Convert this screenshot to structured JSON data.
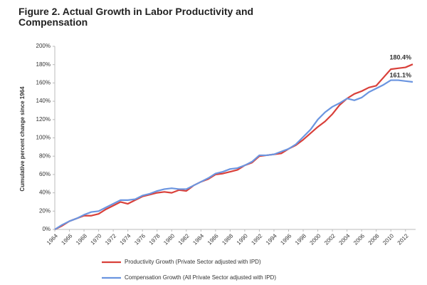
{
  "chart_data": {
    "type": "line",
    "title": "Figure 2. Actual Growth in Labor Productivity and Compensation",
    "y_label": "Cumulative percent change since 1964",
    "x": [
      1964,
      1965,
      1966,
      1967,
      1968,
      1969,
      1970,
      1971,
      1972,
      1973,
      1974,
      1975,
      1976,
      1977,
      1978,
      1979,
      1980,
      1981,
      1982,
      1983,
      1984,
      1985,
      1986,
      1987,
      1988,
      1989,
      1990,
      1991,
      1992,
      1993,
      1994,
      1995,
      1996,
      1997,
      1998,
      1999,
      2000,
      2001,
      2002,
      2003,
      2004,
      2005,
      2006,
      2007,
      2008,
      2009,
      2010,
      2011,
      2012,
      2013
    ],
    "series": [
      {
        "name": "Productivity Growth (Private Sector adjusted with IPD)",
        "color": "#d9403a",
        "values": [
          0,
          4,
          9,
          12,
          15,
          15,
          17,
          22,
          26,
          30,
          28,
          32,
          36,
          38,
          40,
          41,
          40,
          43,
          42,
          48,
          52,
          55,
          60,
          61,
          63,
          65,
          70,
          73,
          80,
          81,
          82,
          83,
          88,
          92,
          98,
          105,
          112,
          118,
          126,
          136,
          143,
          148,
          151,
          155,
          157,
          166,
          175,
          176,
          177,
          180.4
        ],
        "value_labels": [
          null,
          null,
          null,
          null,
          null,
          null,
          null,
          null,
          null,
          null,
          null,
          null,
          null,
          null,
          null,
          null,
          null,
          null,
          null,
          null,
          null,
          null,
          null,
          null,
          null,
          null,
          null,
          null,
          null,
          null,
          null,
          null,
          null,
          null,
          null,
          null,
          null,
          null,
          null,
          null,
          null,
          null,
          null,
          null,
          null,
          null,
          null,
          null,
          null,
          "180.4%"
        ]
      },
      {
        "name": "Compensation Growth (All Private Sector adjusted with IPD)",
        "color": "#6b95e0",
        "values": [
          0,
          5,
          9,
          12,
          16,
          19,
          20,
          24,
          28,
          32,
          32,
          33,
          37,
          39,
          42,
          44,
          45,
          44,
          44,
          48,
          52,
          56,
          61,
          63,
          66,
          67,
          70,
          74,
          81,
          81,
          82,
          85,
          88,
          93,
          101,
          109,
          120,
          128,
          134,
          138,
          143,
          141,
          144,
          150,
          154,
          158,
          163,
          163,
          162,
          161.1
        ],
        "value_labels": [
          null,
          null,
          null,
          null,
          null,
          null,
          null,
          null,
          null,
          null,
          null,
          null,
          null,
          null,
          null,
          null,
          null,
          null,
          null,
          null,
          null,
          null,
          null,
          null,
          null,
          null,
          null,
          null,
          null,
          null,
          null,
          null,
          null,
          null,
          null,
          null,
          null,
          null,
          null,
          null,
          null,
          null,
          null,
          null,
          null,
          null,
          null,
          null,
          null,
          "161.1%"
        ]
      }
    ],
    "xlim": [
      1964,
      2013
    ],
    "xticks": [
      1964,
      1966,
      1968,
      1970,
      1972,
      1974,
      1976,
      1978,
      1980,
      1982,
      1984,
      1986,
      1988,
      1990,
      1992,
      1994,
      1996,
      1998,
      2000,
      2002,
      2004,
      2006,
      2008,
      2010,
      2012
    ],
    "ylim": [
      0,
      200
    ],
    "yticks": [
      {
        "value": 0,
        "label": "0%"
      },
      {
        "value": 20,
        "label": "20%"
      },
      {
        "value": 40,
        "label": "40%"
      },
      {
        "value": 60,
        "label": "60%"
      },
      {
        "value": 80,
        "label": "80%"
      },
      {
        "value": 100,
        "label": "100%"
      },
      {
        "value": 120,
        "label": "120%"
      },
      {
        "value": 140,
        "label": "140%"
      },
      {
        "value": 160,
        "label": "160%"
      },
      {
        "value": 180,
        "label": "180%"
      },
      {
        "value": 200,
        "label": "200%"
      }
    ],
    "grid": false
  }
}
